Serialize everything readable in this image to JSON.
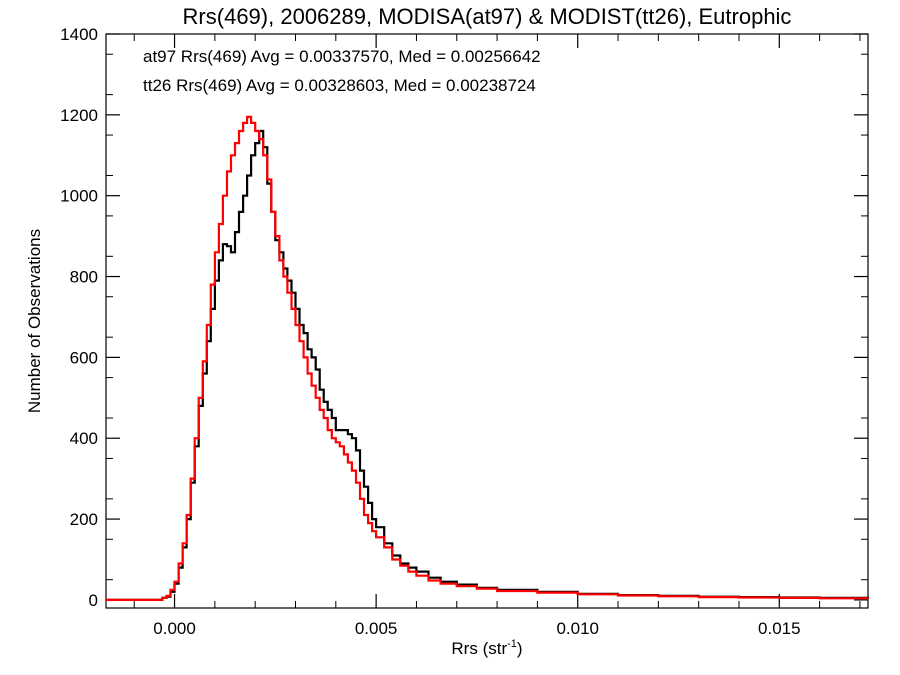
{
  "chart_data": {
    "type": "line",
    "title": "Rrs(469), 2006289, MODISA(at97) & MODIST(tt26), Eutrophic",
    "xlabel_main": "Rrs (str",
    "xlabel_sup": "-1",
    "xlabel_close": ")",
    "ylabel": "Number of Observations",
    "xlim": [
      -0.0017,
      0.0172
    ],
    "ylim": [
      -20,
      1400
    ],
    "x_ticks": [
      0.0,
      0.005,
      0.01,
      0.015
    ],
    "x_tick_labels": [
      "0.000",
      "0.005",
      "0.010",
      "0.015"
    ],
    "y_ticks": [
      0,
      200,
      400,
      600,
      800,
      1000,
      1200,
      1400
    ],
    "y_tick_labels": [
      "0",
      "200",
      "400",
      "600",
      "800",
      "1000",
      "1200",
      "1400"
    ],
    "grid": false,
    "legend": {
      "placement": "top-left"
    },
    "series": [
      {
        "name": "at97 Rrs(469) Avg = 0.00337570, Med = 0.00256642",
        "color": "#000000",
        "x": [
          -0.0017,
          -0.0005,
          -0.0003,
          -0.0002,
          -0.0001,
          0.0,
          0.0001,
          0.0002,
          0.0003,
          0.0004,
          0.0005,
          0.0006,
          0.0007,
          0.0008,
          0.0009,
          0.001,
          0.0011,
          0.0012,
          0.0013,
          0.0014,
          0.0015,
          0.0016,
          0.0017,
          0.0018,
          0.0019,
          0.002,
          0.0021,
          0.0022,
          0.0023,
          0.0024,
          0.0025,
          0.0026,
          0.0027,
          0.0028,
          0.0029,
          0.003,
          0.0031,
          0.0032,
          0.0033,
          0.0034,
          0.0035,
          0.0036,
          0.0037,
          0.0038,
          0.0039,
          0.004,
          0.0041,
          0.0042,
          0.0043,
          0.0044,
          0.0045,
          0.0046,
          0.0047,
          0.0048,
          0.0049,
          0.005,
          0.0052,
          0.0054,
          0.0056,
          0.0058,
          0.006,
          0.0063,
          0.0066,
          0.007,
          0.0075,
          0.008,
          0.009,
          0.01,
          0.011,
          0.012,
          0.013,
          0.014,
          0.015,
          0.016,
          0.0172
        ],
        "values": [
          0,
          0,
          5,
          8,
          20,
          40,
          80,
          130,
          200,
          290,
          380,
          480,
          560,
          640,
          720,
          790,
          840,
          880,
          875,
          860,
          910,
          960,
          1000,
          1050,
          1100,
          1130,
          1160,
          1120,
          1030,
          960,
          890,
          860,
          820,
          790,
          760,
          720,
          680,
          660,
          620,
          600,
          570,
          520,
          490,
          470,
          450,
          420,
          420,
          420,
          410,
          400,
          370,
          320,
          280,
          240,
          200,
          180,
          140,
          110,
          90,
          80,
          70,
          55,
          45,
          38,
          30,
          25,
          20,
          15,
          12,
          10,
          8,
          7,
          6,
          5,
          4
        ]
      },
      {
        "name": "tt26 Rrs(469) Avg = 0.00328603, Med = 0.00238724",
        "color": "#ff0000",
        "x": [
          -0.0017,
          -0.0005,
          -0.0003,
          -0.0002,
          -0.0001,
          0.0,
          0.0001,
          0.0002,
          0.0003,
          0.0004,
          0.0005,
          0.0006,
          0.0007,
          0.0008,
          0.0009,
          0.001,
          0.0011,
          0.0012,
          0.0013,
          0.0014,
          0.0015,
          0.0016,
          0.0017,
          0.0018,
          0.0019,
          0.002,
          0.0021,
          0.0022,
          0.0023,
          0.0024,
          0.0025,
          0.0026,
          0.0027,
          0.0028,
          0.0029,
          0.003,
          0.0031,
          0.0032,
          0.0033,
          0.0034,
          0.0035,
          0.0036,
          0.0037,
          0.0038,
          0.0039,
          0.004,
          0.0041,
          0.0042,
          0.0043,
          0.0044,
          0.0045,
          0.0046,
          0.0047,
          0.0048,
          0.0049,
          0.005,
          0.0052,
          0.0054,
          0.0056,
          0.0058,
          0.006,
          0.0063,
          0.0066,
          0.007,
          0.0075,
          0.008,
          0.009,
          0.01,
          0.011,
          0.012,
          0.013,
          0.014,
          0.015,
          0.016,
          0.0172
        ],
        "values": [
          0,
          0,
          5,
          10,
          25,
          45,
          90,
          140,
          210,
          300,
          400,
          500,
          590,
          680,
          780,
          860,
          930,
          1000,
          1060,
          1100,
          1130,
          1160,
          1180,
          1195,
          1180,
          1160,
          1140,
          1100,
          1040,
          960,
          900,
          840,
          800,
          760,
          720,
          680,
          640,
          600,
          560,
          530,
          500,
          470,
          450,
          420,
          400,
          390,
          380,
          360,
          340,
          320,
          290,
          250,
          210,
          190,
          170,
          155,
          130,
          100,
          85,
          70,
          60,
          48,
          40,
          34,
          28,
          22,
          18,
          14,
          11,
          9,
          7,
          6,
          5,
          4,
          3
        ]
      }
    ]
  }
}
